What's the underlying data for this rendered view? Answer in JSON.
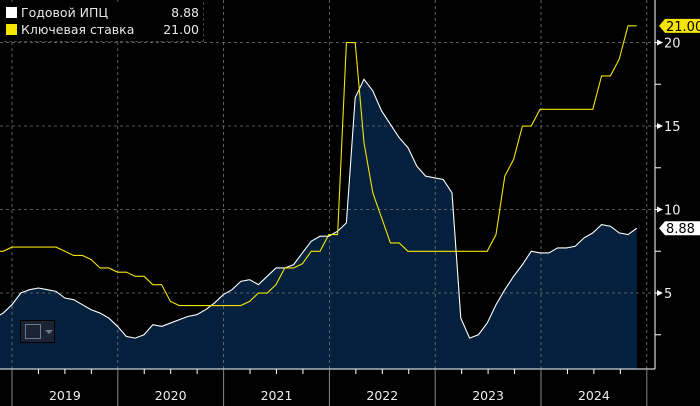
{
  "chart_data": {
    "type": "area+line",
    "legend_position": "top-left",
    "grid": true,
    "y_axis_side": "right",
    "ylim": [
      0.45,
      22.5
    ],
    "y_ticks": [
      5,
      10,
      15,
      20
    ],
    "x_ticks": [
      "2019",
      "2020",
      "2021",
      "2022",
      "2023",
      "2024"
    ],
    "x_range": [
      "2018-10",
      "2024-11"
    ],
    "months": [
      "2018-10",
      "2018-11",
      "2018-12",
      "2019-01",
      "2019-02",
      "2019-03",
      "2019-04",
      "2019-05",
      "2019-06",
      "2019-07",
      "2019-08",
      "2019-09",
      "2019-10",
      "2019-11",
      "2019-12",
      "2020-01",
      "2020-02",
      "2020-03",
      "2020-04",
      "2020-05",
      "2020-06",
      "2020-07",
      "2020-08",
      "2020-09",
      "2020-10",
      "2020-11",
      "2020-12",
      "2021-01",
      "2021-02",
      "2021-03",
      "2021-04",
      "2021-05",
      "2021-06",
      "2021-07",
      "2021-08",
      "2021-09",
      "2021-10",
      "2021-11",
      "2021-12",
      "2022-01",
      "2022-02",
      "2022-03",
      "2022-04",
      "2022-05",
      "2022-06",
      "2022-07",
      "2022-08",
      "2022-09",
      "2022-10",
      "2022-11",
      "2022-12",
      "2023-01",
      "2023-02",
      "2023-03",
      "2023-04",
      "2023-05",
      "2023-06",
      "2023-07",
      "2023-08",
      "2023-09",
      "2023-10",
      "2023-11",
      "2023-12",
      "2024-01",
      "2024-02",
      "2024-03",
      "2024-04",
      "2024-05",
      "2024-06",
      "2024-07",
      "2024-08",
      "2024-09",
      "2024-10",
      "2024-11"
    ],
    "series": [
      {
        "name": "Годовой ИПЦ",
        "last": "8.88",
        "color": "#ffffff",
        "fill": "#04203d",
        "style": "area",
        "values": [
          3.5,
          3.8,
          4.3,
          5.0,
          5.2,
          5.3,
          5.2,
          5.1,
          4.7,
          4.6,
          4.3,
          4.0,
          3.8,
          3.5,
          3.0,
          2.4,
          2.3,
          2.5,
          3.1,
          3.0,
          3.2,
          3.4,
          3.6,
          3.7,
          4.0,
          4.4,
          4.9,
          5.2,
          5.7,
          5.8,
          5.5,
          6.0,
          6.5,
          6.5,
          6.7,
          7.4,
          8.1,
          8.4,
          8.4,
          8.7,
          9.2,
          16.7,
          17.8,
          17.1,
          15.9,
          15.1,
          14.3,
          13.7,
          12.6,
          12.0,
          11.9,
          11.8,
          11.0,
          3.5,
          2.3,
          2.5,
          3.2,
          4.3,
          5.2,
          6.0,
          6.7,
          7.5,
          7.4,
          7.4,
          7.7,
          7.7,
          7.8,
          8.3,
          8.6,
          9.1,
          9.0,
          8.6,
          8.5,
          8.88
        ]
      },
      {
        "name": "Ключевая ставка",
        "last": "21.00",
        "color": "#f5e400",
        "style": "line",
        "values": [
          7.5,
          7.5,
          7.75,
          7.75,
          7.75,
          7.75,
          7.75,
          7.75,
          7.5,
          7.25,
          7.25,
          7.0,
          6.5,
          6.5,
          6.25,
          6.25,
          6.0,
          6.0,
          5.5,
          5.5,
          4.5,
          4.25,
          4.25,
          4.25,
          4.25,
          4.25,
          4.25,
          4.25,
          4.25,
          4.5,
          5.0,
          5.0,
          5.5,
          6.5,
          6.5,
          6.75,
          7.5,
          7.5,
          8.5,
          8.5,
          20,
          20,
          14,
          11,
          9.5,
          8,
          8,
          7.5,
          7.5,
          7.5,
          7.5,
          7.5,
          7.5,
          7.5,
          7.5,
          7.5,
          7.5,
          8.5,
          12,
          13,
          15,
          15,
          16,
          16,
          16,
          16,
          16,
          16,
          16,
          18,
          18,
          19,
          21,
          21
        ]
      }
    ]
  }
}
